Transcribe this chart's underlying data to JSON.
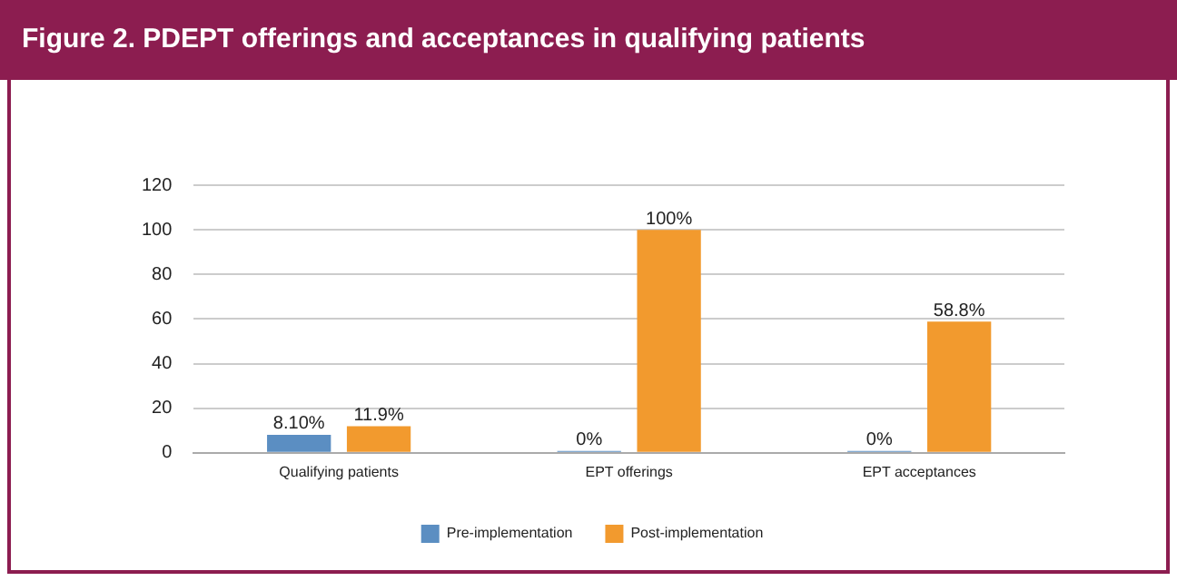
{
  "chart_data": {
    "type": "bar",
    "title": "Figure 2. PDEPT offerings and acceptances in qualifying patients",
    "categories": [
      "Qualifying patients",
      "EPT offerings",
      "EPT acceptances"
    ],
    "series": [
      {
        "name": "Pre-implementation",
        "color": "#5b8ec2",
        "values": [
          8.1,
          0,
          0
        ],
        "value_labels": [
          "8.10%",
          "0%",
          "0%"
        ]
      },
      {
        "name": "Post-implementation",
        "color": "#f29a2e",
        "values": [
          11.9,
          100,
          58.8
        ],
        "value_labels": [
          "11.9%",
          "100%",
          "58.8%"
        ]
      }
    ],
    "ylim": [
      0,
      120
    ],
    "yticks": [
      0,
      20,
      40,
      60,
      80,
      100,
      120
    ],
    "grid": "y",
    "legend": "bottom"
  }
}
